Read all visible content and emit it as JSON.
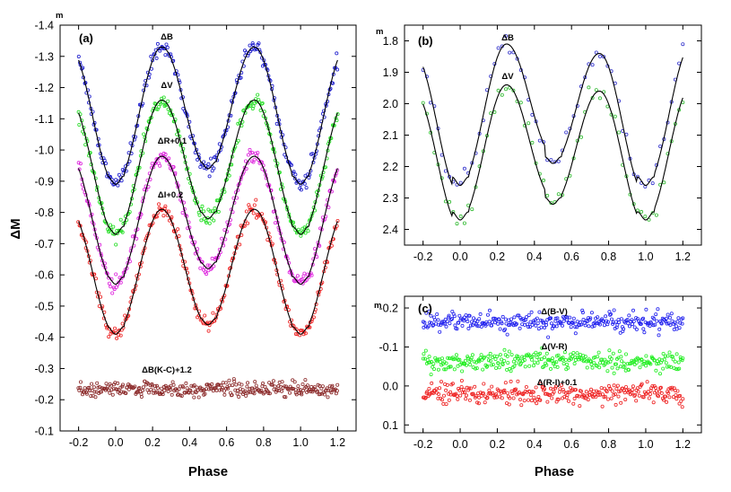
{
  "chart_data": [
    {
      "panel": "(a)",
      "type": "scatter",
      "xlabel": "Phase",
      "ylabel": "ΔM",
      "xlim": [
        -0.3,
        1.3
      ],
      "ylim": [
        -1.4,
        -0.1
      ],
      "y_inverted": true,
      "x_ticks": [
        -0.2,
        0.0,
        0.2,
        0.4,
        0.6,
        0.8,
        1.0,
        1.2
      ],
      "x_tick_labels": [
        "-0.2",
        "0.0",
        "0.2",
        "0.4",
        "0.6",
        "0.8",
        "1.0",
        "1.2"
      ],
      "y_ticks": [
        -1.4,
        -1.3,
        -1.2,
        -1.1,
        -1.0,
        -0.9,
        -0.8,
        -0.7,
        -0.6,
        -0.5,
        -0.4,
        -0.3,
        -0.2,
        -0.1
      ],
      "y_tick_labels": [
        "-1.4",
        "-1.3",
        "-1.2",
        "-1.1",
        "-1.0",
        "-0.9",
        "-0.8",
        "-0.7",
        "-0.6",
        "-0.5",
        "-0.4",
        "-0.3",
        "-0.2",
        "-0.1"
      ],
      "unit_mark": "m",
      "series": [
        {
          "name": "ΔB",
          "label_main": "ΔB",
          "color": "#1a1acc",
          "fit": true,
          "max": -1.33,
          "min1": -0.89,
          "min2": -0.94,
          "scatter": 0.012
        },
        {
          "name": "ΔV",
          "label_main": "ΔV",
          "color": "#22dd22",
          "fit": true,
          "max": -1.16,
          "min1": -0.73,
          "min2": -0.78,
          "scatter": 0.012
        },
        {
          "name": "ΔR+0.1",
          "label_main": "ΔR+0.1",
          "color": "#dd22dd",
          "fit": true,
          "max": -0.98,
          "min1": -0.57,
          "min2": -0.62,
          "scatter": 0.012
        },
        {
          "name": "ΔI+0.2",
          "label_main": "ΔI+0.2",
          "color": "#ee2222",
          "fit": true,
          "max": -0.81,
          "min1": -0.41,
          "min2": -0.44,
          "scatter": 0.012
        },
        {
          "name": "ΔB(K-C)+1.2",
          "label_main": "ΔB(K-C)+1.2",
          "color": "#8b2a2a",
          "fit": false,
          "level": -0.235,
          "scatter": 0.012
        }
      ]
    },
    {
      "panel": "(b)",
      "type": "line",
      "xlabel": "",
      "ylabel": "",
      "xlim": [
        -0.3,
        1.3
      ],
      "ylim": [
        1.75,
        2.45
      ],
      "y_inverted": true,
      "x_ticks": [
        -0.2,
        0.0,
        0.2,
        0.4,
        0.6,
        0.8,
        1.0,
        1.2
      ],
      "x_tick_labels": [
        "-0.2",
        "0.0",
        "0.2",
        "0.4",
        "0.6",
        "0.8",
        "1.0",
        "1.2"
      ],
      "y_ticks": [
        1.8,
        1.9,
        2.0,
        2.1,
        2.2,
        2.3,
        2.4
      ],
      "y_tick_labels": [
        "1.8",
        "1.9",
        "2.0",
        "2.1",
        "2.2",
        "2.3",
        "2.4"
      ],
      "unit_mark": "m",
      "series": [
        {
          "name": "ΔB",
          "label_main": "ΔB",
          "color": "#3333cc",
          "max1": 1.81,
          "max2": 1.84,
          "min1": 2.26,
          "min2": 2.19,
          "scatter": 0.015
        },
        {
          "name": "ΔV",
          "label_main": "ΔV",
          "color": "#33bb33",
          "max1": 1.94,
          "max2": 1.96,
          "min1": 2.37,
          "min2": 2.32,
          "scatter": 0.015
        }
      ]
    },
    {
      "panel": "(c)",
      "type": "scatter",
      "xlabel": "Phase",
      "ylabel": "",
      "xlim": [
        -0.3,
        1.3
      ],
      "ylim": [
        -0.23,
        0.12
      ],
      "y_inverted": true,
      "x_ticks": [
        -0.2,
        0.0,
        0.2,
        0.4,
        0.6,
        0.8,
        1.0,
        1.2
      ],
      "x_tick_labels": [
        "-0.2",
        "0.0",
        "0.2",
        "0.4",
        "0.6",
        "0.8",
        "1.0",
        "1.2"
      ],
      "y_ticks": [
        -0.2,
        -0.1,
        0.0,
        0.1
      ],
      "y_tick_labels": [
        "-0.2",
        "-0.1",
        "0.0",
        "0.1"
      ],
      "unit_mark": "m",
      "series": [
        {
          "name": "Δ(B-V)",
          "label_main": "Δ(B-V)",
          "color": "#2222ee",
          "level": -0.165,
          "scatter": 0.012
        },
        {
          "name": "Δ(V-R)",
          "label_main": "Δ(V-R)",
          "color": "#22ee22",
          "level": -0.065,
          "scatter": 0.012
        },
        {
          "name": "Δ(R-I)+0.1",
          "label_main": "Δ(R-I)+0.1",
          "color": "#ee2222",
          "level": 0.02,
          "scatter": 0.013
        }
      ]
    }
  ]
}
